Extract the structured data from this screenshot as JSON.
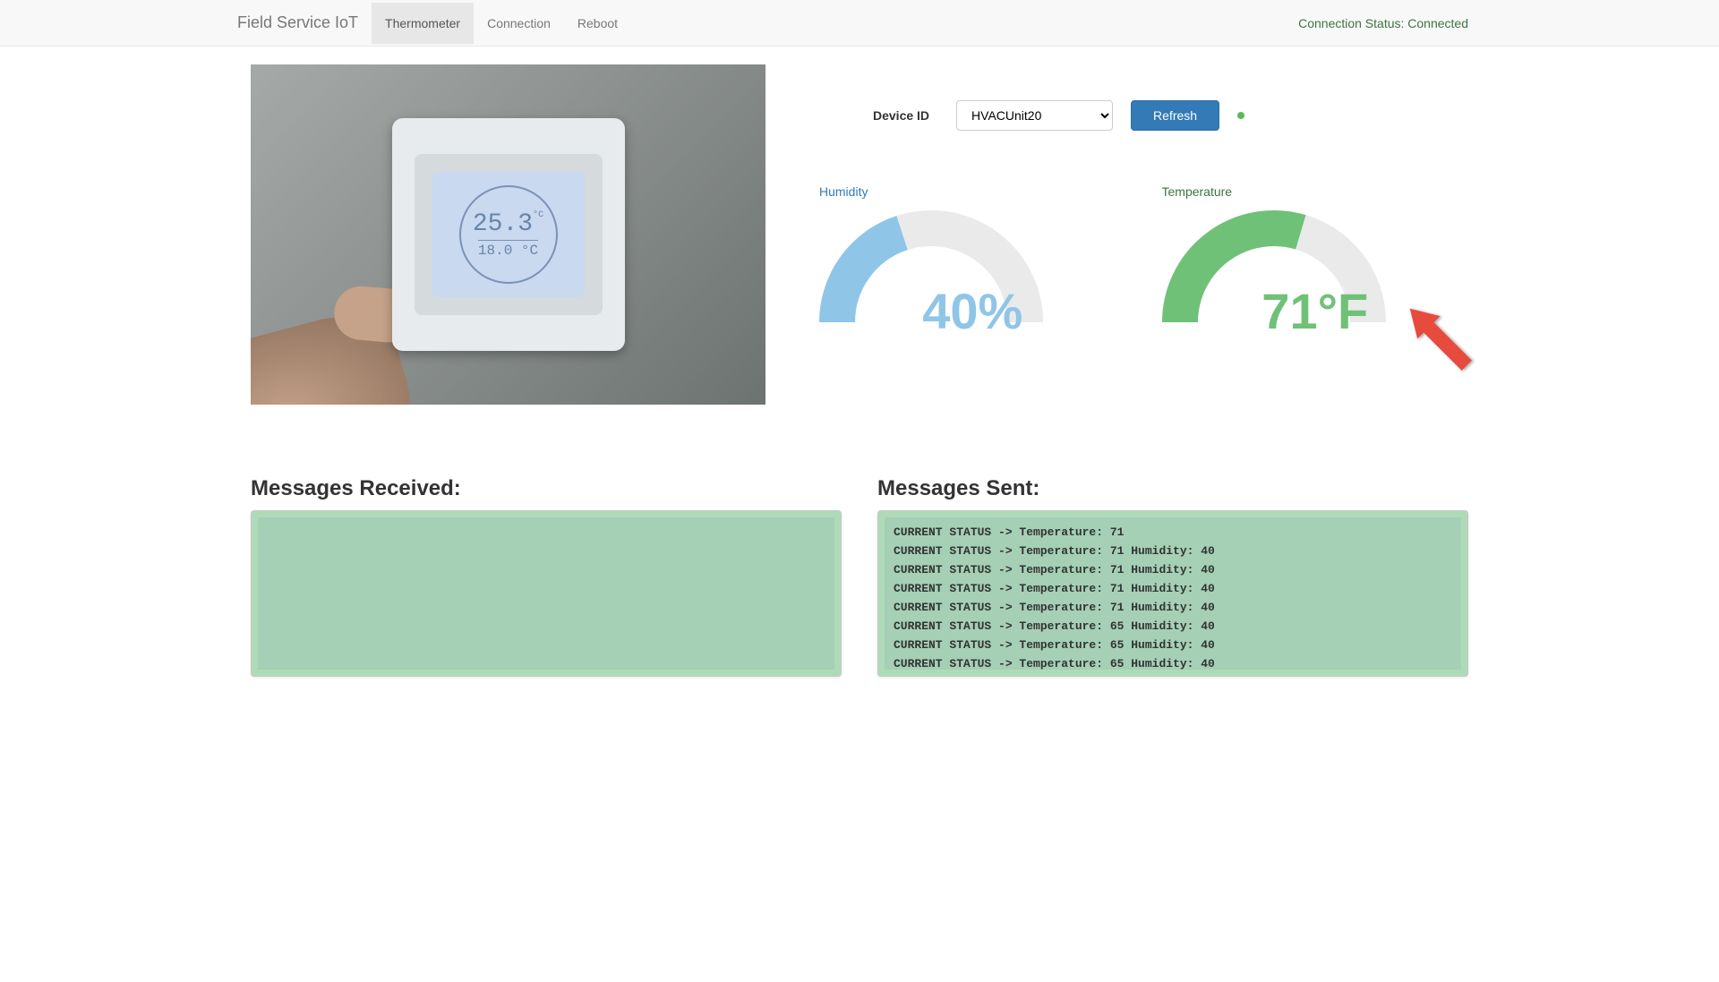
{
  "navbar": {
    "brand": "Field Service IoT",
    "tabs": [
      {
        "label": "Thermometer",
        "active": true
      },
      {
        "label": "Connection",
        "active": false
      },
      {
        "label": "Reboot",
        "active": false
      }
    ],
    "status_label": "Connection Status:",
    "status_value": "Connected",
    "status_color": "#3c763d"
  },
  "thermostat_image": {
    "main_temp": "25.3",
    "main_unit": "°C",
    "sub_temp": "18.0",
    "sub_unit": "°C"
  },
  "controls": {
    "device_id_label": "Device ID",
    "device_id_value": "HVACUnit20",
    "device_options": [
      "HVACUnit20"
    ],
    "refresh_label": "Refresh",
    "indicator_color": "#5cb85c"
  },
  "gauges": {
    "humidity": {
      "title": "Humidity",
      "value": 40,
      "display": "40%",
      "max": 100,
      "arc_color": "#8fc6e8",
      "bg_color": "#eaeaea",
      "text_color": "#8fc6e8",
      "title_color": "#337ab7"
    },
    "temperature": {
      "title": "Temperature",
      "value": 71,
      "display": "71°F",
      "max": 120,
      "arc_color": "#70c178",
      "bg_color": "#eaeaea",
      "text_color": "#70c178",
      "title_color": "#3c763d"
    }
  },
  "arrow": {
    "color": "#e74c3c"
  },
  "messages": {
    "received_heading": "Messages Received:",
    "sent_heading": "Messages Sent:",
    "received": [],
    "sent": [
      "CURRENT STATUS -> Temperature: 71",
      "CURRENT STATUS -> Temperature: 71 Humidity: 40",
      "CURRENT STATUS -> Temperature: 71 Humidity: 40",
      "CURRENT STATUS -> Temperature: 71 Humidity: 40",
      "CURRENT STATUS -> Temperature: 71 Humidity: 40",
      "CURRENT STATUS -> Temperature: 65 Humidity: 40",
      "CURRENT STATUS -> Temperature: 65 Humidity: 40",
      "CURRENT STATUS -> Temperature: 65 Humidity: 40"
    ]
  }
}
